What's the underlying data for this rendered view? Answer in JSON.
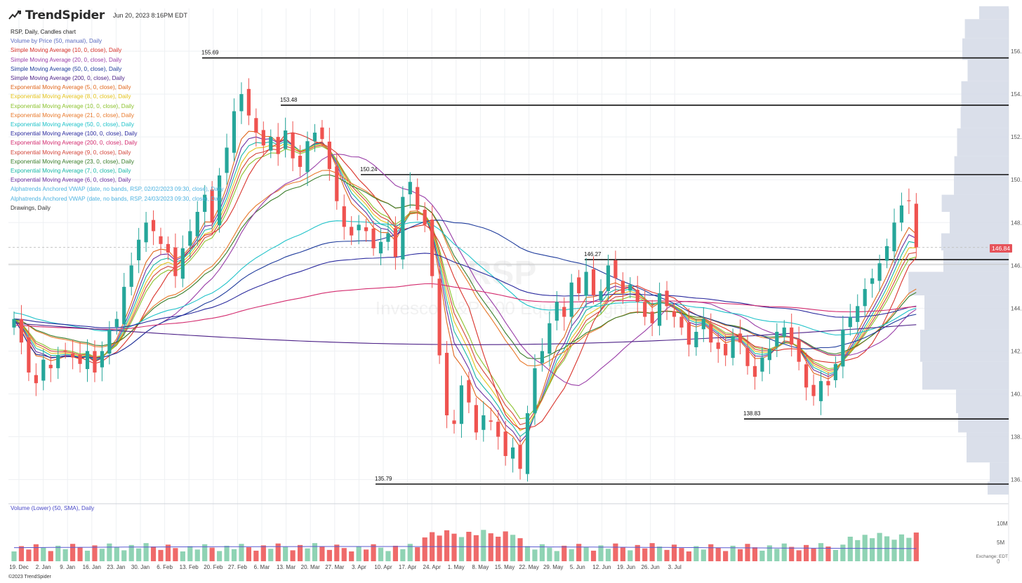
{
  "header": {
    "logo_text": "TrendSpider",
    "timestamp": "Jun 20, 2023 8:16PM EDT",
    "symbol_line": "RSP, Daily, Candles chart"
  },
  "legend": [
    {
      "label": "Volume by Price (50, manual), Daily",
      "color": "#5b6bbf"
    },
    {
      "label": "Simple Moving Average (10, 0, close), Daily",
      "color": "#d9332b"
    },
    {
      "label": "Simple Moving Average (20, 0, close), Daily",
      "color": "#9a3fa8"
    },
    {
      "label": "Simple Moving Average (50, 0, close), Daily",
      "color": "#1f3c9c"
    },
    {
      "label": "Simple Moving Average (200, 0, close), Daily",
      "color": "#4b1f86"
    },
    {
      "label": "Exponential Moving Average (5, 0, close), Daily",
      "color": "#e0661c"
    },
    {
      "label": "Exponential Moving Average (8, 0, close), Daily",
      "color": "#e3c21a"
    },
    {
      "label": "Exponential Moving Average (10, 0, close), Daily",
      "color": "#8bc22c"
    },
    {
      "label": "Exponential Moving Average (21, 0, close), Daily",
      "color": "#e8782a"
    },
    {
      "label": "Exponential Moving Average (50, 0, close), Daily",
      "color": "#1fc2c9"
    },
    {
      "label": "Exponential Moving Average (100, 0, close), Daily",
      "color": "#2a2a9e"
    },
    {
      "label": "Exponential Moving Average (200, 0, close), Daily",
      "color": "#d32b6e"
    },
    {
      "label": "Exponential Moving Average (9, 0, close), Daily",
      "color": "#d2453a"
    },
    {
      "label": "Exponential Moving Average (23, 0, close), Daily",
      "color": "#3a7e2b"
    },
    {
      "label": "Exponential Moving Average (7, 0, close), Daily",
      "color": "#17b7a6"
    },
    {
      "label": "Exponential Moving Average (6, 0, close), Daily",
      "color": "#6a2fa0"
    },
    {
      "label": "Alphatrends Anchored VWAP (date, no bands, RSP, 02/02/2023 09:30, close), Daily",
      "color": "#4fb3e0"
    },
    {
      "label": "Alphatrends Anchored VWAP (date, no bands, RSP, 24/03/2023 09:30, close), Daily",
      "color": "#4fb3e0"
    },
    {
      "label": "Drawings, Daily",
      "color": "#333333"
    }
  ],
  "volume_label": "Volume (Lower) (50, SMA), Daily",
  "copyright": "©2023 TrendSpider",
  "exchange_label": "Exchange: EDT",
  "current_price": "146.84",
  "watermark": {
    "symbol": "RSP",
    "name": "Invesco S&P 500 Equal Weight"
  },
  "colors": {
    "up": "#26a69a",
    "down": "#ef5350",
    "vol_up": "#8fd3b4",
    "vol_down": "#ef6a6a",
    "vbp": "#d3d9e6",
    "sma_vol": "#5a5ad0"
  },
  "chart_data": {
    "type": "candlestick",
    "x_tick_labels": [
      "19. Dec",
      "2. Jan",
      "9. Jan",
      "16. Jan",
      "23. Jan",
      "30. Jan",
      "6. Feb",
      "13. Feb",
      "20. Feb",
      "27. Feb",
      "6. Mar",
      "13. Mar",
      "20. Mar",
      "27. Mar",
      "3. Apr",
      "10. Apr",
      "17. Apr",
      "24. Apr",
      "1. May",
      "8. May",
      "15. May",
      "22. May",
      "29. May",
      "5. Jun",
      "12. Jun",
      "19. Jun",
      "26. Jun",
      "3. Jul"
    ],
    "y_ticks": [
      136,
      138,
      140,
      142,
      144,
      146,
      148,
      150,
      152,
      154,
      156
    ],
    "y_range": [
      135.2,
      158.0
    ],
    "volume_ticks": [
      "10M",
      "5M",
      "0"
    ],
    "horizontal_levels": [
      155.69,
      153.48,
      150.24,
      146.27,
      138.83,
      135.79
    ],
    "closes": [
      143.5,
      142.4,
      141.0,
      140.5,
      141.6,
      141.2,
      141.8,
      142.0,
      141.7,
      141.4,
      142.0,
      141.0,
      142.0,
      143.0,
      143.5,
      145.0,
      146.0,
      147.2,
      148.0,
      147.6,
      147.0,
      146.6,
      145.5,
      146.8,
      147.6,
      148.5,
      149.3,
      148.0,
      150.2,
      151.5,
      153.2,
      154.0,
      153.0,
      152.2,
      151.6,
      152.0,
      151.2,
      152.3,
      151.0,
      150.6,
      151.8,
      152.2,
      151.9,
      150.5,
      149.0,
      147.8,
      147.4,
      147.9,
      147.6,
      146.8,
      147.1,
      147.5,
      146.4,
      149.2,
      149.9,
      148.6,
      147.9,
      145.5,
      141.8,
      139.0,
      138.6,
      140.4,
      139.6,
      138.2,
      139.0,
      138.7,
      138.0,
      137.1,
      137.5,
      136.5,
      139.1,
      141.2,
      142.0,
      143.3,
      144.3,
      143.6,
      145.2,
      144.7,
      145.7,
      144.6,
      144.8,
      146.0,
      145.4,
      144.7,
      145.1,
      144.3,
      143.6,
      143.3,
      144.7,
      144.1,
      143.6,
      143.1,
      142.3,
      142.9,
      143.5,
      142.4,
      142.1,
      141.8,
      142.7,
      142.4,
      141.3,
      140.8,
      141.7,
      142.1,
      142.9,
      143.1,
      142.3,
      141.5,
      140.3,
      139.9,
      140.6,
      140.4,
      141.4,
      143.0,
      143.6,
      144.1,
      144.9,
      145.4,
      146.1,
      146.9,
      148.0,
      148.8,
      149.0,
      146.84
    ]
  }
}
